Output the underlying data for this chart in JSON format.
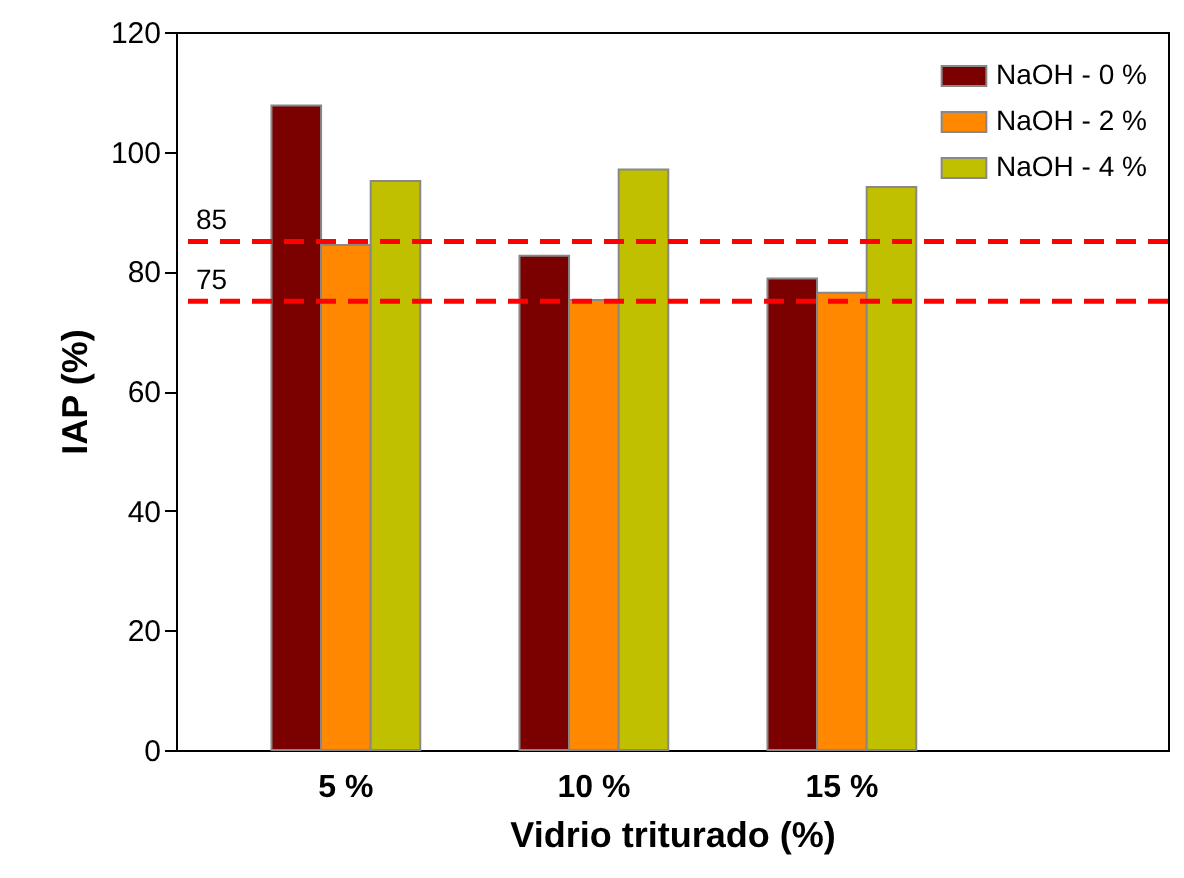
{
  "chart_data": {
    "type": "bar",
    "xlabel": "Vidrio triturado (%)",
    "ylabel": "IAP (%)",
    "categories": [
      "5 %",
      "10 %",
      "15 %"
    ],
    "series": [
      {
        "name": "NaOH - 0 %",
        "color": "#7b0000",
        "values": [
          107.7,
          82.6,
          78.8
        ]
      },
      {
        "name": "NaOH - 2 %",
        "color": "#ff8800",
        "values": [
          84.4,
          75.2,
          76.4
        ]
      },
      {
        "name": "NaOH - 4 %",
        "color": "#c0c000",
        "values": [
          95.1,
          97.0,
          94.1
        ]
      }
    ],
    "ylim": [
      0,
      120
    ],
    "yticks": [
      0,
      20,
      40,
      60,
      80,
      100,
      120
    ],
    "grid": false,
    "legend": "top right",
    "ref_lines": [
      {
        "axis": "y",
        "value": 85,
        "label": "85",
        "color": "#ff0000",
        "line_style": "dashed"
      },
      {
        "axis": "y",
        "value": 75,
        "label": "75",
        "color": "#ff0000",
        "line_style": "dashed"
      }
    ]
  }
}
